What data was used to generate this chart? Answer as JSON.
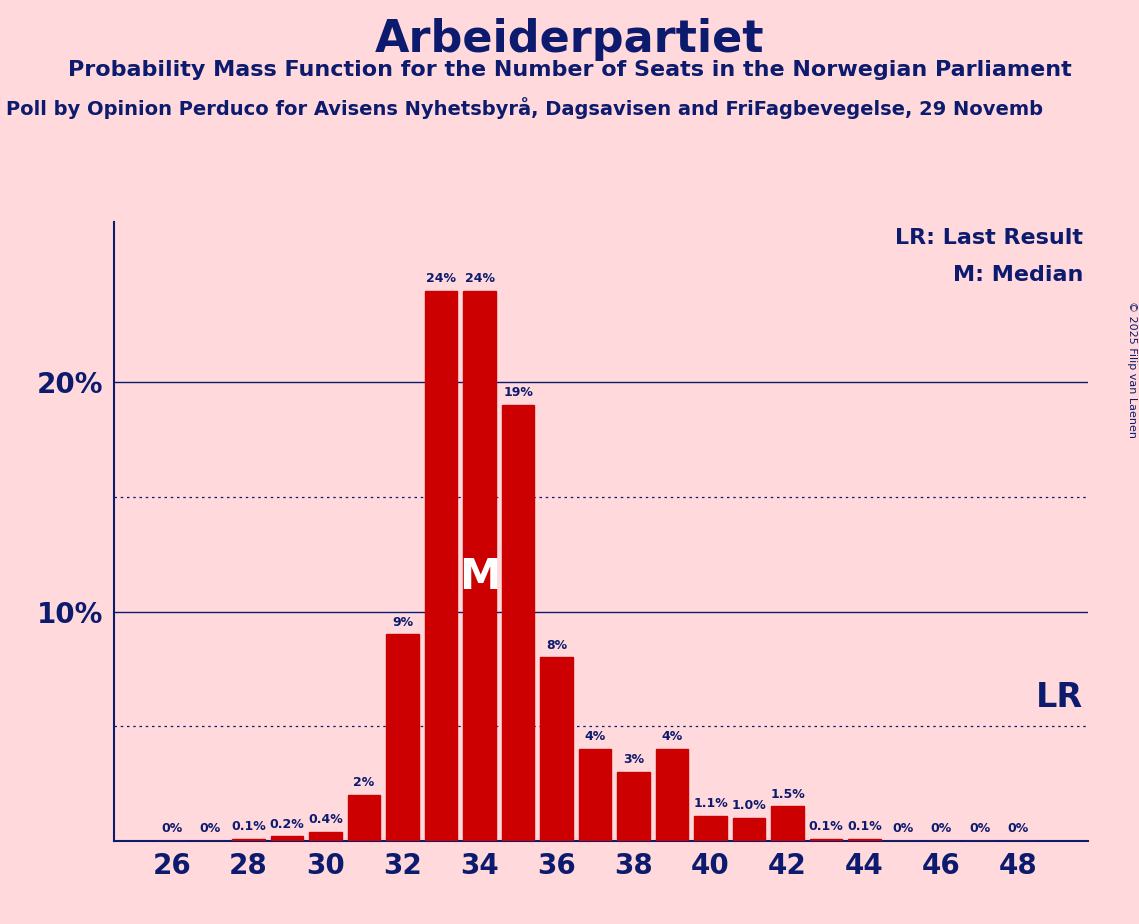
{
  "title": "Arbeiderpartiet",
  "subtitle": "Probability Mass Function for the Number of Seats in the Norwegian Parliament",
  "source": "Poll by Opinion Perduco for Avisens Nyhetsbyrå, Dagsavisen and FriFagbevegelse, 29 Novemb",
  "copyright": "© 2025 Filip van Laenen",
  "background_color": "#FFD9DC",
  "bar_color": "#CC0000",
  "text_color": "#0D1B6E",
  "seats": [
    26,
    27,
    28,
    29,
    30,
    31,
    32,
    33,
    34,
    35,
    36,
    37,
    38,
    39,
    40,
    41,
    42,
    43,
    44,
    45,
    46,
    47,
    48
  ],
  "probs": [
    0.0,
    0.0,
    0.1,
    0.2,
    0.4,
    2.0,
    9.0,
    24.0,
    24.0,
    19.0,
    8.0,
    4.0,
    3.0,
    4.0,
    1.1,
    1.0,
    1.5,
    0.1,
    0.1,
    0.0,
    0.0,
    0.0,
    0.0
  ],
  "labels": [
    "0%",
    "0%",
    "0.1%",
    "0.2%",
    "0.4%",
    "2%",
    "9%",
    "24%",
    "24%",
    "19%",
    "8%",
    "4%",
    "3%",
    "4%",
    "1.1%",
    "1.0%",
    "1.5%",
    "0.1%",
    "0.1%",
    "0%",
    "0%",
    "0%",
    "0%"
  ],
  "median_seat": 34,
  "lr_seat": 42,
  "ylim": [
    0,
    27
  ],
  "solid_gridlines": [
    10,
    20
  ],
  "dotted_gridlines": [
    5,
    15
  ],
  "legend_lr": "LR: Last Result",
  "legend_m": "M: Median",
  "lr_label": "LR",
  "title_fontsize": 32,
  "subtitle_fontsize": 16,
  "source_fontsize": 14,
  "ytick_fontsize": 20,
  "xtick_fontsize": 20,
  "bar_label_fontsize": 9,
  "legend_fontsize": 16,
  "lr_fontsize": 24,
  "m_fontsize": 30
}
